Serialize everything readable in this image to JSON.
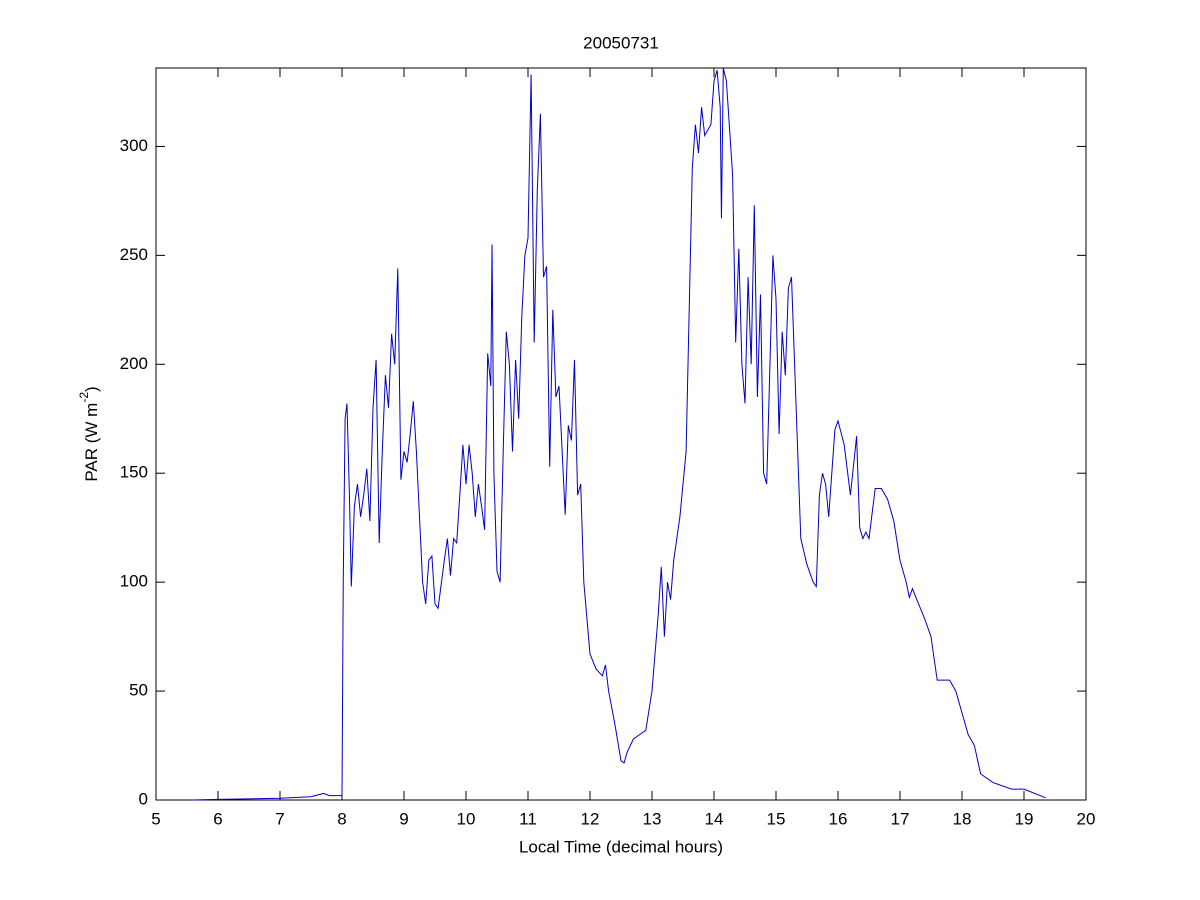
{
  "chart_data": {
    "type": "line",
    "title": "20050731",
    "xlabel": "Local Time (decimal hours)",
    "ylabel": {
      "text": "PAR (W m",
      "superscript": "-2",
      "suffix": ")"
    },
    "xlim": [
      5,
      20
    ],
    "xticks": [
      5,
      6,
      7,
      8,
      9,
      10,
      11,
      12,
      13,
      14,
      15,
      16,
      17,
      18,
      19,
      20
    ],
    "ylim": [
      0,
      336
    ],
    "yticks": [
      0,
      50,
      100,
      150,
      200,
      250,
      300
    ],
    "grid": false,
    "series": [
      {
        "color": "#0000c8",
        "x": [
          5.58,
          6,
          7,
          7.5,
          7.7,
          7.8,
          8.0,
          8.02,
          8.05,
          8.08,
          8.12,
          8.15,
          8.2,
          8.25,
          8.3,
          8.35,
          8.4,
          8.45,
          8.5,
          8.55,
          8.6,
          8.65,
          8.7,
          8.75,
          8.8,
          8.85,
          8.9,
          8.95,
          9.0,
          9.05,
          9.1,
          9.15,
          9.2,
          9.3,
          9.35,
          9.4,
          9.45,
          9.5,
          9.55,
          9.65,
          9.7,
          9.75,
          9.8,
          9.85,
          9.9,
          9.95,
          10.0,
          10.05,
          10.1,
          10.15,
          10.2,
          10.25,
          10.3,
          10.35,
          10.4,
          10.42,
          10.45,
          10.5,
          10.55,
          10.6,
          10.65,
          10.7,
          10.75,
          10.8,
          10.85,
          10.9,
          10.95,
          11.0,
          11.05,
          11.1,
          11.15,
          11.2,
          11.25,
          11.3,
          11.35,
          11.4,
          11.45,
          11.5,
          11.6,
          11.65,
          11.7,
          11.75,
          11.8,
          11.85,
          11.9,
          12.0,
          12.1,
          12.2,
          12.25,
          12.3,
          12.4,
          12.5,
          12.55,
          12.6,
          12.7,
          12.8,
          12.9,
          13.0,
          13.1,
          13.15,
          13.2,
          13.25,
          13.3,
          13.35,
          13.45,
          13.55,
          13.65,
          13.7,
          13.75,
          13.8,
          13.85,
          13.95,
          14.0,
          14.05,
          14.1,
          14.12,
          14.15,
          14.2,
          14.3,
          14.35,
          14.4,
          14.45,
          14.5,
          14.55,
          14.6,
          14.65,
          14.7,
          14.75,
          14.8,
          14.85,
          14.95,
          15.0,
          15.05,
          15.1,
          15.15,
          15.2,
          15.25,
          15.3,
          15.4,
          15.5,
          15.6,
          15.65,
          15.7,
          15.75,
          15.8,
          15.85,
          15.95,
          16.0,
          16.1,
          16.2,
          16.3,
          16.35,
          16.4,
          16.45,
          16.5,
          16.6,
          16.7,
          16.8,
          16.9,
          17.0,
          17.1,
          17.15,
          17.2,
          17.3,
          17.4,
          17.5,
          17.6,
          17.8,
          17.9,
          18.0,
          18.1,
          18.2,
          18.3,
          18.5,
          18.8,
          19.0,
          19.35
        ],
        "values": [
          0,
          0.3,
          0.8,
          1.5,
          3,
          2,
          2,
          100,
          175,
          182,
          140,
          98,
          135,
          145,
          130,
          140,
          152,
          128,
          180,
          202,
          118,
          160,
          195,
          180,
          214,
          200,
          244,
          147,
          160,
          155,
          168,
          183,
          160,
          100,
          90,
          110,
          112,
          90,
          88,
          110,
          120,
          103,
          120,
          118,
          140,
          163,
          145,
          163,
          150,
          130,
          145,
          135,
          124,
          205,
          190,
          255,
          150,
          105,
          100,
          160,
          215,
          200,
          160,
          202,
          175,
          222,
          250,
          258,
          333,
          210,
          280,
          315,
          240,
          245,
          153,
          225,
          185,
          190,
          131,
          172,
          165,
          202,
          140,
          145,
          100,
          67,
          60,
          57,
          62,
          50,
          35,
          18,
          17,
          22,
          28,
          30,
          32,
          50,
          85,
          107,
          75,
          100,
          92,
          110,
          130,
          160,
          290,
          310,
          297,
          318,
          305,
          310,
          330,
          335,
          318,
          267,
          336,
          330,
          287,
          210,
          253,
          200,
          182,
          240,
          200,
          273,
          185,
          232,
          150,
          145,
          250,
          230,
          168,
          215,
          195,
          235,
          240,
          200,
          120,
          108,
          100,
          98,
          140,
          150,
          145,
          130,
          170,
          174,
          163,
          140,
          167,
          125,
          120,
          123,
          120,
          143,
          143,
          138,
          128,
          110,
          100,
          93,
          97,
          90,
          83,
          75,
          55,
          55,
          50,
          40,
          30,
          25,
          12,
          8,
          5,
          5,
          1
        ]
      }
    ]
  }
}
